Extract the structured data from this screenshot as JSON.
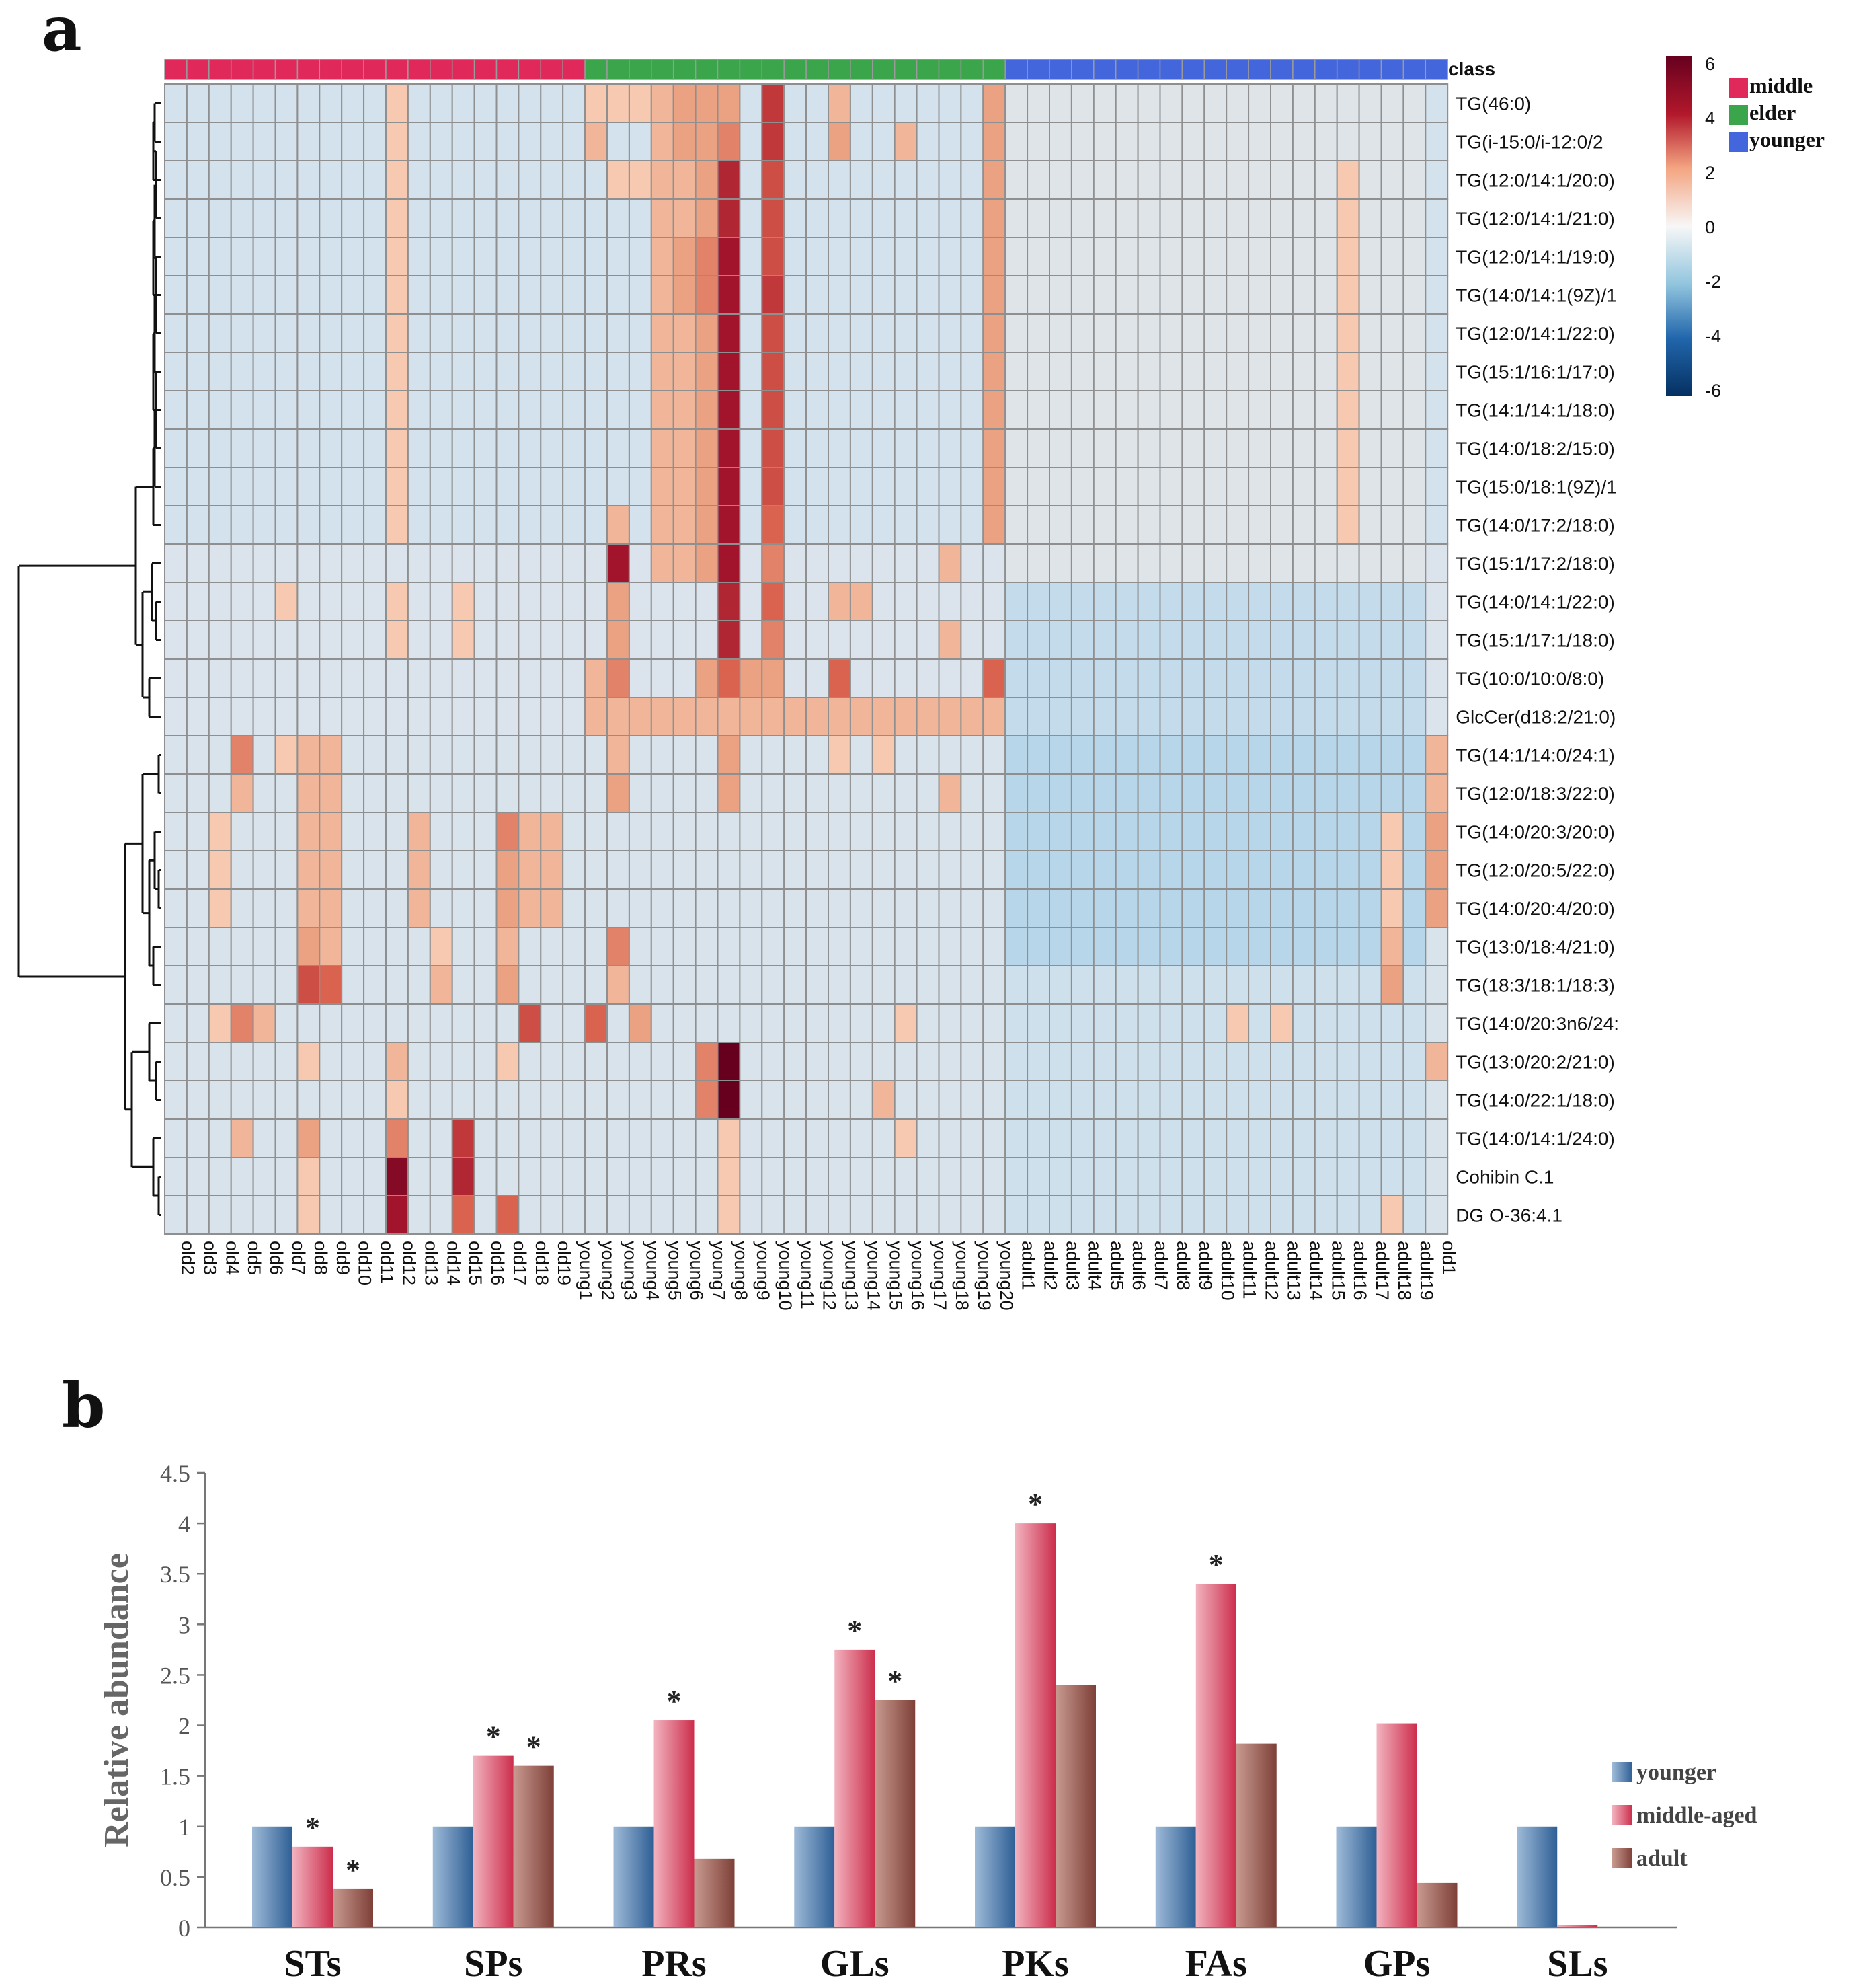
{
  "panel_a": {
    "letter": "a",
    "class_label": "class",
    "class_legend": [
      {
        "label": "middle",
        "color": "#e0285a"
      },
      {
        "label": "elder",
        "color": "#3aa54a"
      },
      {
        "label": "younger",
        "color": "#4466dd"
      }
    ],
    "colorbar": {
      "ticks": [
        "6",
        "4",
        "2",
        "0",
        "-2",
        "-4",
        "-6"
      ],
      "colors": [
        "#67001f",
        "#d6604d",
        "#fddbc7",
        "#f7f7f7",
        "#d1e5f0",
        "#4393c3",
        "#053061"
      ]
    }
  },
  "panel_b": {
    "letter": "b",
    "legend": [
      {
        "label": "younger",
        "color": "#3a6aa0"
      },
      {
        "label": "middle-aged",
        "color": "#d8405a"
      },
      {
        "label": "adult",
        "color": "#8a5048"
      }
    ]
  },
  "chart_data": [
    {
      "type": "heatmap",
      "title": "",
      "column_groups": [
        {
          "name": "middle",
          "columns": [
            "old2",
            "old3",
            "old4",
            "old5",
            "old6",
            "old7",
            "old8",
            "old9",
            "old10",
            "old11",
            "old12",
            "old13",
            "old14",
            "old15",
            "old16",
            "old17",
            "old18",
            "old19",
            "young1"
          ]
        },
        {
          "name": "elder",
          "columns": [
            "young2",
            "young3",
            "young4",
            "young5",
            "young6",
            "young7",
            "young8",
            "young9",
            "young10",
            "young11",
            "young12",
            "young13",
            "young14",
            "young15",
            "young16",
            "young17",
            "young18",
            "young19",
            "young20"
          ]
        },
        {
          "name": "younger",
          "columns": [
            "adult1",
            "adult2",
            "adult3",
            "adult4",
            "adult5",
            "adult6",
            "adult7",
            "adult8",
            "adult9",
            "adult10",
            "adult11",
            "adult12",
            "adult13",
            "adult14",
            "adult15",
            "adult16",
            "adult17",
            "adult18",
            "adult19",
            "old1"
          ]
        }
      ],
      "columns": [
        "old2",
        "old3",
        "old4",
        "old5",
        "old6",
        "old7",
        "old8",
        "old9",
        "old10",
        "old11",
        "old12",
        "old13",
        "old14",
        "old15",
        "old16",
        "old17",
        "old18",
        "old19",
        "young1",
        "young2",
        "young3",
        "young4",
        "young5",
        "young6",
        "young7",
        "young8",
        "young9",
        "young10",
        "young11",
        "young12",
        "young13",
        "young14",
        "young15",
        "young16",
        "young17",
        "young18",
        "young19",
        "young20",
        "adult1",
        "adult2",
        "adult3",
        "adult4",
        "adult5",
        "adult6",
        "adult7",
        "adult8",
        "adult9",
        "adult10",
        "adult11",
        "adult12",
        "adult13",
        "adult14",
        "adult15",
        "adult16",
        "adult17",
        "adult18",
        "adult19",
        "old1"
      ],
      "rows": [
        "TG(46:0)",
        "TG(i-15:0/i-12:0/2",
        "TG(12:0/14:1/20:0)",
        "TG(12:0/14:1/21:0)",
        "TG(12:0/14:1/19:0)",
        "TG(14:0/14:1(9Z)/1",
        "TG(12:0/14:1/22:0)",
        "TG(15:1/16:1/17:0)",
        "TG(14:1/14:1/18:0)",
        "TG(14:0/18:2/15:0)",
        "TG(15:0/18:1(9Z)/1",
        "TG(14:0/17:2/18:0)",
        "TG(15:1/17:2/18:0)",
        "TG(14:0/14:1/22:0)",
        "TG(15:1/17:1/18:0)",
        "TG(10:0/10:0/8:0)",
        "GlcCer(d18:2/21:0)",
        "TG(14:1/14:0/24:1)",
        "TG(12:0/18:3/22:0)",
        "TG(14:0/20:3/20:0)",
        "TG(12:0/20:5/22:0)",
        "TG(14:0/20:4/20:0)",
        "TG(13:0/18:4/21:0)",
        "TG(18:3/18:1/18:3)",
        "TG(14:0/20:3n6/24:",
        "TG(13:0/20:2/21:0)",
        "TG(14:0/22:1/18:0)",
        "TG(14:0/14:1/24:0)",
        "Cohibin C.1",
        "DG O-36:4.1"
      ],
      "value_range": [
        -6,
        6
      ],
      "cells": [
        {
          "row": "TG(46:0)",
          "highlights": {
            "old12": 1,
            "young2": 1,
            "young3": 1,
            "young4": 1,
            "young5": 1.5,
            "young6": 2,
            "young7": 2,
            "young8": 2,
            "young10": 4,
            "young13": 1.5,
            "young20": 2
          }
        },
        {
          "row": "TG(i-15:0/i-12:0/2",
          "highlights": {
            "old12": 1,
            "young2": 1.5,
            "young5": 1.5,
            "young6": 2,
            "young7": 2,
            "young8": 2.5,
            "young10": 4,
            "young13": 2,
            "young16": 1.5,
            "young20": 2
          }
        },
        {
          "row": "TG(12:0/14:1/20:0)",
          "highlights": {
            "old12": 1,
            "young3": 1,
            "young4": 1,
            "young5": 1.5,
            "young6": 1.5,
            "young7": 2,
            "young8": 4.5,
            "young10": 3.5,
            "young20": 2,
            "adult16": 1
          }
        },
        {
          "row": "TG(12:0/14:1/21:0)",
          "highlights": {
            "old12": 1,
            "young5": 1.5,
            "young6": 1.5,
            "young7": 2,
            "young8": 4.5,
            "young10": 3.5,
            "young20": 2,
            "adult16": 1
          }
        },
        {
          "row": "TG(12:0/14:1/19:0)",
          "highlights": {
            "old12": 1,
            "young5": 1.5,
            "young6": 2,
            "young7": 2.5,
            "young8": 5,
            "young10": 3.5,
            "young20": 2,
            "adult16": 1
          }
        },
        {
          "row": "TG(14:0/14:1(9Z)/1",
          "highlights": {
            "old12": 1,
            "young5": 1.5,
            "young6": 2,
            "young7": 2.5,
            "young8": 5,
            "young10": 4,
            "young20": 2,
            "adult16": 1
          }
        },
        {
          "row": "TG(12:0/14:1/22:0)",
          "highlights": {
            "old12": 1,
            "young5": 1.5,
            "young6": 1.5,
            "young7": 2,
            "young8": 5,
            "young10": 3.5,
            "young20": 2,
            "adult16": 1
          }
        },
        {
          "row": "TG(15:1/16:1/17:0)",
          "highlights": {
            "old12": 1,
            "young5": 1.5,
            "young6": 1.5,
            "young7": 2,
            "young8": 5,
            "young10": 3.5,
            "young20": 2,
            "adult16": 1
          }
        },
        {
          "row": "TG(14:1/14:1/18:0)",
          "highlights": {
            "old12": 1,
            "young5": 1.5,
            "young6": 1.5,
            "young7": 2,
            "young8": 5,
            "young10": 3.5,
            "young20": 2,
            "adult16": 1
          }
        },
        {
          "row": "TG(14:0/18:2/15:0)",
          "highlights": {
            "old12": 1,
            "young5": 1.5,
            "young6": 1.5,
            "young7": 2,
            "young8": 5,
            "young10": 3.5,
            "young20": 2,
            "adult16": 1
          }
        },
        {
          "row": "TG(15:0/18:1(9Z)/1",
          "highlights": {
            "old12": 1,
            "young5": 1.5,
            "young6": 1.5,
            "young7": 2,
            "young8": 5,
            "young10": 3.5,
            "young20": 2,
            "adult16": 1
          }
        },
        {
          "row": "TG(14:0/17:2/18:0)",
          "highlights": {
            "old12": 1,
            "young3": 1.5,
            "young5": 1.5,
            "young6": 1.5,
            "young7": 2,
            "young8": 5,
            "young10": 3,
            "young20": 2,
            "adult16": 1
          }
        },
        {
          "row": "TG(15:1/17:2/18:0)",
          "highlights": {
            "young3": 5,
            "young5": 1.5,
            "young6": 1.5,
            "young7": 2,
            "young8": 5,
            "young10": 2.5,
            "young18": 1.5
          }
        },
        {
          "row": "TG(14:0/14:1/22:0)",
          "highlights": {
            "old7": 1,
            "old12": 1,
            "old15": 1,
            "young3": 2,
            "young8": 4.5,
            "young10": 3,
            "young13": 1.5,
            "young14": 1.5
          }
        },
        {
          "row": "TG(15:1/17:1/18:0)",
          "highlights": {
            "old12": 1,
            "old15": 1,
            "young3": 2,
            "young8": 4.5,
            "young10": 2.5,
            "young18": 1.5
          }
        },
        {
          "row": "TG(10:0/10:0/8:0)",
          "highlights": {
            "young2": 1.5,
            "young3": 2.5,
            "young7": 2,
            "young8": 3,
            "young9": 2,
            "young10": 2,
            "young13": 3,
            "young20": 3
          }
        },
        {
          "row": "GlcCer(d18:2/21:0)",
          "highlights": {
            "young2": 1.5,
            "young3": 1.5,
            "young4": 1.5,
            "young5": 1.5,
            "young6": 1.5,
            "young7": 1.5,
            "young8": 1.5,
            "young9": 1.5,
            "young10": 1.5,
            "young11": 1.5,
            "young12": 1.5,
            "young13": 1.5,
            "young14": 1.5,
            "young15": 1.5,
            "young16": 1.5,
            "young17": 1.5,
            "young18": 1.5,
            "young19": 1.5,
            "young20": 1.5
          }
        },
        {
          "row": "TG(14:1/14:0/24:1)",
          "highlights": {
            "old5": 2.5,
            "old7": 1,
            "old8": 1.5,
            "old9": 1.5,
            "young3": 1.5,
            "young8": 2,
            "young13": 1,
            "young15": 1,
            "old1": 1.5
          }
        },
        {
          "row": "TG(12:0/18:3/22:0)",
          "highlights": {
            "old5": 1.5,
            "old8": 1.5,
            "old9": 1.5,
            "young3": 2,
            "young8": 2,
            "young18": 1.5,
            "old1": 1.5
          }
        },
        {
          "row": "TG(14:0/20:3/20:0)",
          "highlights": {
            "old4": 1,
            "old8": 1.5,
            "old9": 1.5,
            "old13": 1.5,
            "old17": 2.5,
            "old18": 1.5,
            "old19": 1.5,
            "adult18": 1,
            "old1": 2
          }
        },
        {
          "row": "TG(12:0/20:5/22:0)",
          "highlights": {
            "old4": 1,
            "old8": 1.5,
            "old9": 1.5,
            "old13": 1.5,
            "old17": 2,
            "old18": 1.5,
            "old19": 1.5,
            "adult18": 1,
            "old1": 2
          }
        },
        {
          "row": "TG(14:0/20:4/20:0)",
          "highlights": {
            "old4": 1,
            "old8": 1.5,
            "old9": 1.5,
            "old13": 1.5,
            "old17": 2,
            "old18": 1.5,
            "old19": 1.5,
            "adult18": 1,
            "old1": 2
          }
        },
        {
          "row": "TG(13:0/18:4/21:0)",
          "highlights": {
            "old8": 2,
            "old9": 1.5,
            "old14": 1,
            "old17": 1.5,
            "young3": 2.5,
            "adult18": 1.5
          }
        },
        {
          "row": "TG(18:3/18:1/18:3)",
          "highlights": {
            "old8": 3.5,
            "old9": 3,
            "old14": 1.5,
            "old17": 2,
            "young3": 1.5,
            "adult18": 2
          }
        },
        {
          "row": "TG(14:0/20:3n6/24:",
          "highlights": {
            "old4": 1,
            "old5": 2.5,
            "old6": 1.5,
            "old18": 3.5,
            "young2": 3,
            "young4": 2,
            "young16": 1,
            "adult11": 1,
            "adult13": 1
          }
        },
        {
          "row": "TG(13:0/20:2/21:0)",
          "highlights": {
            "old8": 1,
            "old12": 1.5,
            "old17": 1,
            "young7": 2.5,
            "young8": 6,
            "old1": 1.5
          }
        },
        {
          "row": "TG(14:0/22:1/18:0)",
          "highlights": {
            "old12": 1,
            "young7": 2.5,
            "young8": 6,
            "young15": 1.5
          }
        },
        {
          "row": "TG(14:0/14:1/24:0)",
          "highlights": {
            "old5": 1.5,
            "old8": 2,
            "old12": 2.5,
            "old15": 4,
            "young8": 1,
            "young16": 1
          }
        },
        {
          "row": "Cohibin C.1",
          "highlights": {
            "old8": 1,
            "old12": 5.5,
            "old15": 4.5,
            "young8": 1
          }
        },
        {
          "row": "DG O-36:4.1",
          "highlights": {
            "old8": 1,
            "old12": 5,
            "old15": 3,
            "old17": 3,
            "young8": 1,
            "adult18": 1
          }
        }
      ]
    },
    {
      "type": "bar",
      "title": "",
      "xlabel": "",
      "ylabel": "Relative abundance",
      "ylim": [
        0,
        4.5
      ],
      "yticks": [
        "0",
        "0.5",
        "1",
        "1.5",
        "2",
        "2.5",
        "3",
        "3.5",
        "4",
        "4.5"
      ],
      "categories": [
        "STs",
        "SPs",
        "PRs",
        "GLs",
        "PKs",
        "FAs",
        "GPs",
        "SLs"
      ],
      "series": [
        {
          "name": "younger",
          "values": [
            1,
            1,
            1,
            1,
            1,
            1,
            1,
            1
          ]
        },
        {
          "name": "middle-aged",
          "values": [
            0.8,
            1.7,
            2.05,
            2.75,
            4.0,
            3.4,
            2.02,
            0.02
          ]
        },
        {
          "name": "adult",
          "values": [
            0.38,
            1.6,
            0.68,
            2.25,
            2.4,
            1.82,
            0.44,
            0
          ]
        }
      ],
      "significance": {
        "marker": "*",
        "middle-aged": [
          true,
          true,
          true,
          true,
          true,
          true,
          false,
          false
        ],
        "adult": [
          true,
          true,
          false,
          true,
          false,
          false,
          false,
          false
        ]
      }
    }
  ]
}
